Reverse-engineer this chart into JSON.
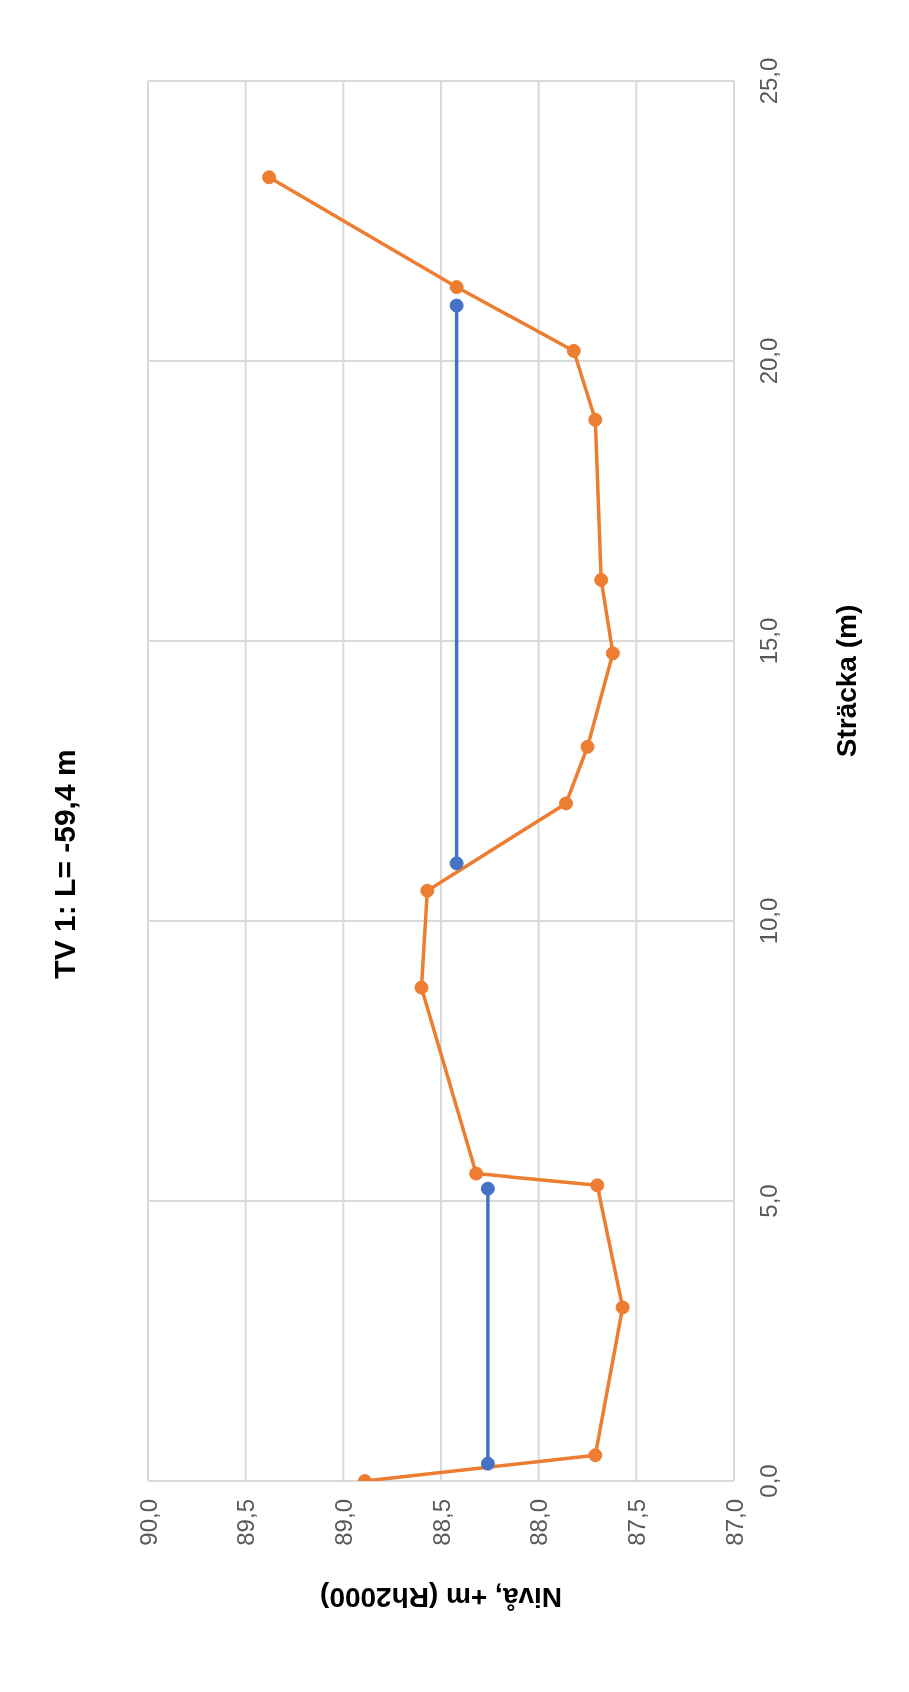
{
  "chart_data": {
    "type": "line",
    "title": "TV 1: L= -59,4 m",
    "xlabel": "Nivå, +m (Rh2000)",
    "ylabel": "Sträcka (m)",
    "xlim": [
      90,
      87
    ],
    "ylim": [
      0,
      25
    ],
    "xticks": [
      {
        "value": 90,
        "label": "90,0"
      },
      {
        "value": 89.5,
        "label": "89,5"
      },
      {
        "value": 89,
        "label": "89,0"
      },
      {
        "value": 88.5,
        "label": "88,5"
      },
      {
        "value": 88,
        "label": "88,0"
      },
      {
        "value": 87.5,
        "label": "87,5"
      },
      {
        "value": 87,
        "label": "87,0"
      }
    ],
    "yticks": [
      {
        "value": 0,
        "label": "0,0"
      },
      {
        "value": 5,
        "label": "5,0"
      },
      {
        "value": 10,
        "label": "10,0"
      },
      {
        "value": 15,
        "label": "15,0"
      },
      {
        "value": 20,
        "label": "20,0"
      },
      {
        "value": 25,
        "label": "25,0"
      }
    ],
    "grid": true,
    "marker": "circle",
    "line_style": "solid",
    "series": [
      {
        "color": "#ed7d31",
        "x": [
          88.89,
          87.71,
          87.57,
          87.7,
          88.32,
          88.6,
          88.57,
          87.86,
          87.75,
          87.62,
          87.68,
          87.71,
          87.82,
          88.42,
          89.38
        ],
        "values": [
          0,
          0.46,
          3.1,
          5.28,
          5.49,
          8.81,
          10.54,
          12.1,
          13.11,
          14.78,
          16.09,
          18.95,
          20.18,
          21.32,
          23.28
        ]
      },
      {
        "color": "#4472c4",
        "x": [
          88.26,
          88.26
        ],
        "values": [
          0.31,
          5.22
        ]
      },
      {
        "color": "#4472c4",
        "x": [
          88.42,
          88.42
        ],
        "values": [
          11.03,
          20.99
        ]
      }
    ]
  }
}
